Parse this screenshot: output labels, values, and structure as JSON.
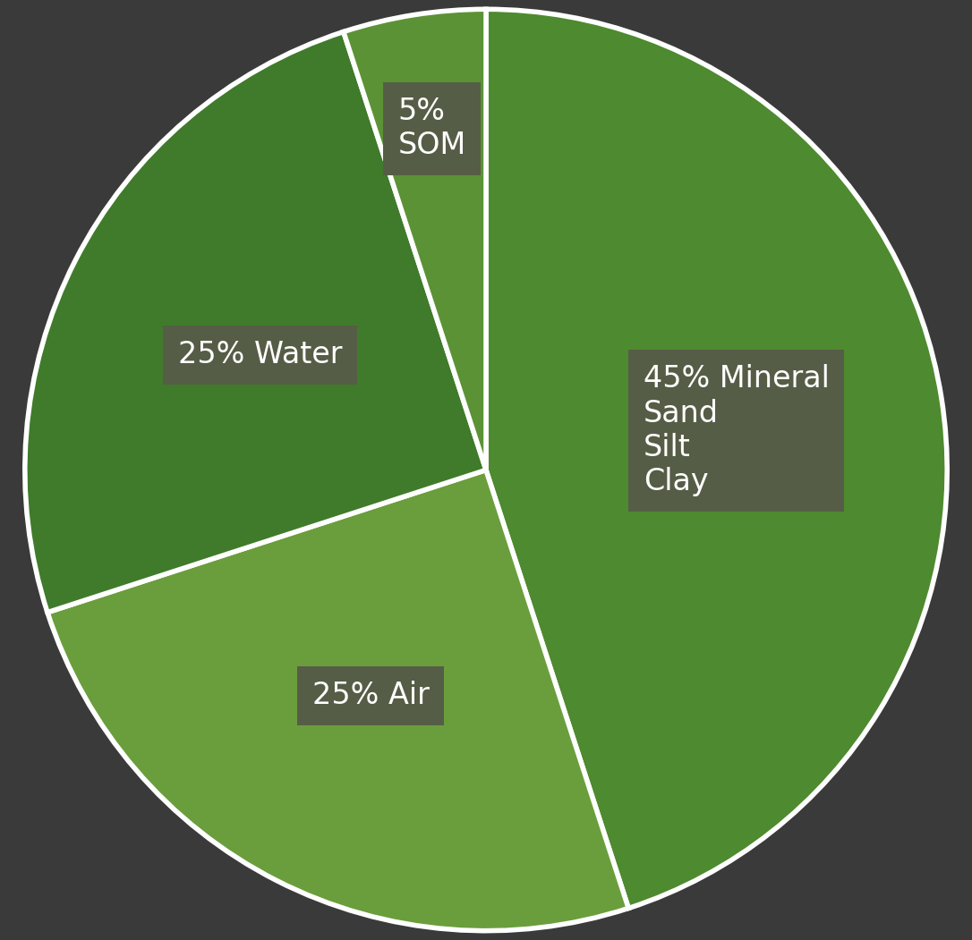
{
  "chart_data": {
    "type": "pie",
    "categories": [
      "45% Mineral\nSand\nSilt\nClay",
      "25% Air",
      "25% Water",
      "5%\nSOM"
    ],
    "values": [
      45,
      25,
      25,
      5
    ],
    "colors": [
      "#4e8a2f",
      "#6a9e3c",
      "#3f7b2b",
      "#5c9236"
    ]
  }
}
